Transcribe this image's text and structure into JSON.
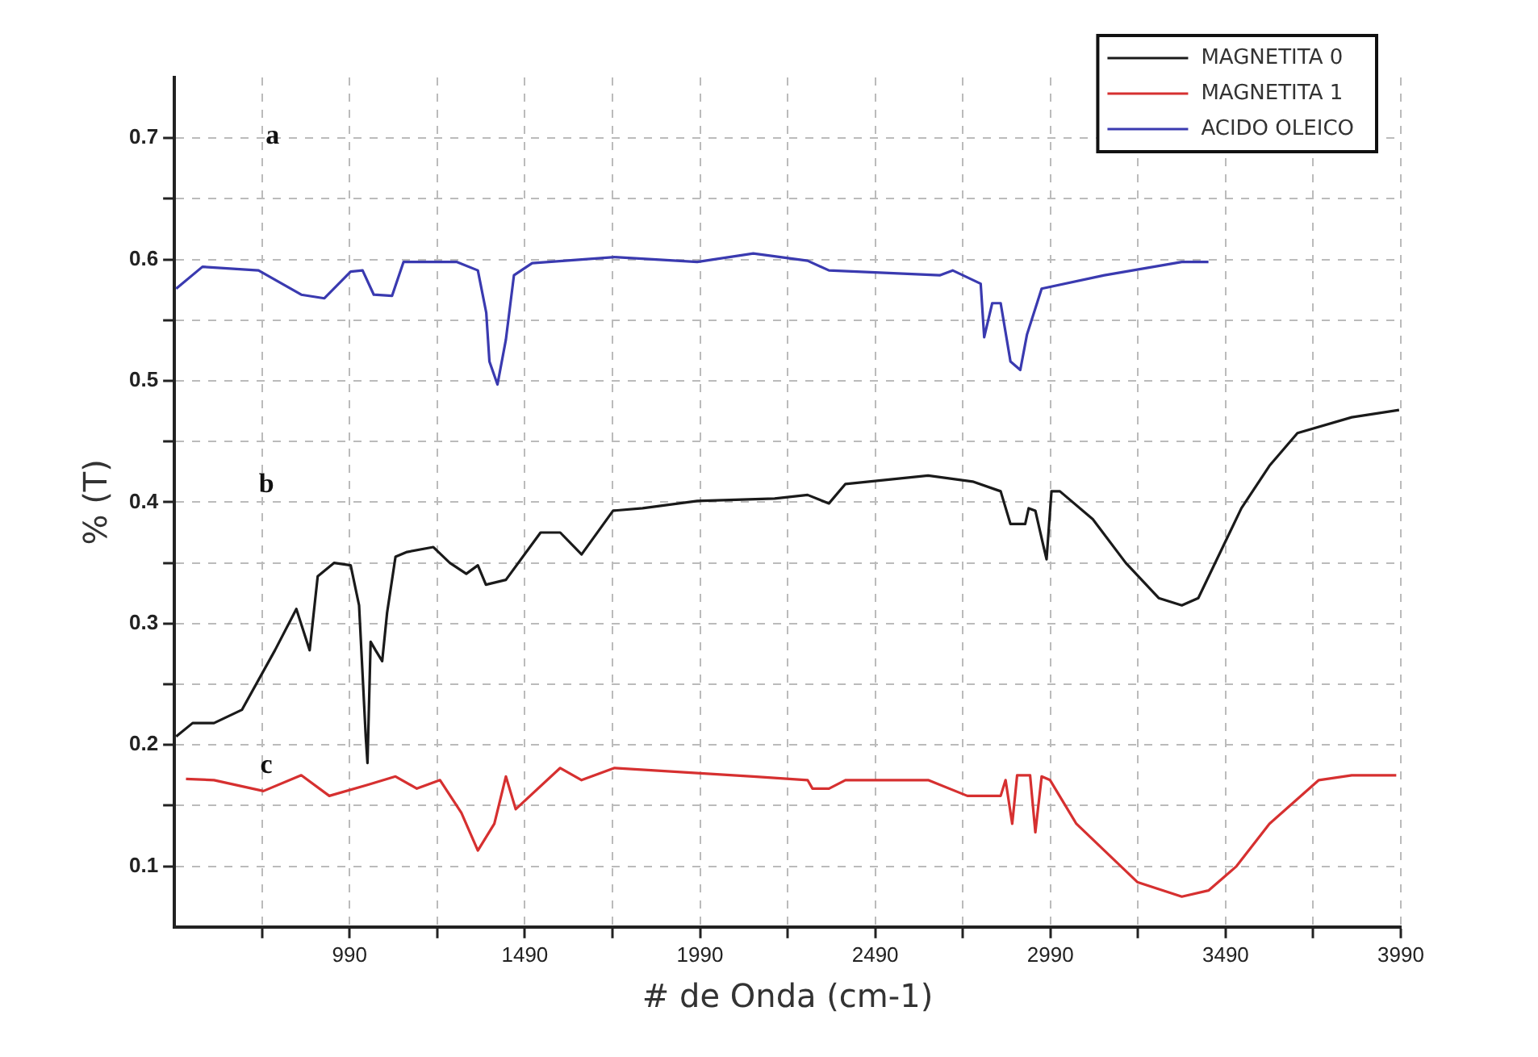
{
  "chart_data": {
    "type": "line",
    "xlabel": "# de Onda (cm-1)",
    "ylabel": "% (T)",
    "xlim": [
      490,
      3990
    ],
    "xticks": [
      {
        "value": 740,
        "label": null
      },
      990,
      {
        "value": 1240,
        "label": null
      },
      1490,
      {
        "value": 1740,
        "label": null
      },
      1990,
      {
        "value": 2240,
        "label": null
      },
      2490,
      {
        "value": 2740,
        "label": null
      },
      2990,
      {
        "value": 3240,
        "label": null
      },
      3490,
      {
        "value": 3740,
        "label": null
      },
      3990
    ],
    "ylim": [
      0.05,
      0.75
    ],
    "yticks": [
      0.1,
      {
        "value": 0.15,
        "label": null
      },
      0.2,
      {
        "value": 0.25,
        "label": null
      },
      0.3,
      {
        "value": 0.35,
        "label": null
      },
      0.4,
      {
        "value": 0.45,
        "label": null
      },
      0.5,
      {
        "value": 0.55,
        "label": null
      },
      0.6,
      {
        "value": 0.65,
        "label": null
      },
      0.7
    ],
    "grid": true,
    "legend": "top right",
    "marker": "none",
    "line_style": "solid",
    "annotations": [
      "a",
      "b",
      "c"
    ],
    "series": [
      {
        "name": "MAGNETITA 0",
        "color": "#1a1a1a",
        "x": [
          495,
          542,
          603,
          683,
          777,
          838,
          876,
          899,
          946,
          993,
          1017,
          1036,
          1041,
          1050,
          1064,
          1083,
          1097,
          1121,
          1154,
          1229,
          1276,
          1323,
          1356,
          1379,
          1436,
          1535,
          1591,
          1652,
          1742,
          1826,
          1982,
          2203,
          2297,
          2358,
          2405,
          2641,
          2768,
          2848,
          2876,
          2918,
          2928,
          2947,
          2970,
          2979,
          2993,
          3017,
          3111,
          3205,
          3299,
          3365,
          3412,
          3535,
          3615,
          3695,
          3850,
          3985
        ],
        "values": [
          0.207,
          0.218,
          0.218,
          0.229,
          0.278,
          0.312,
          0.278,
          0.339,
          0.35,
          0.348,
          0.315,
          0.207,
          0.185,
          0.285,
          0.278,
          0.269,
          0.309,
          0.355,
          0.359,
          0.363,
          0.35,
          0.341,
          0.348,
          0.332,
          0.336,
          0.375,
          0.375,
          0.357,
          0.393,
          0.395,
          0.401,
          0.403,
          0.406,
          0.399,
          0.415,
          0.422,
          0.417,
          0.409,
          0.382,
          0.382,
          0.395,
          0.393,
          0.364,
          0.353,
          0.409,
          0.409,
          0.386,
          0.35,
          0.321,
          0.315,
          0.321,
          0.395,
          0.43,
          0.457,
          0.47,
          0.476
        ]
      },
      {
        "name": "MAGNETITA 1",
        "color": "#d63030",
        "x": [
          523,
          603,
          744,
          852,
          932,
          1041,
          1121,
          1182,
          1248,
          1309,
          1356,
          1403,
          1436,
          1464,
          1591,
          1652,
          1746,
          2142,
          2297,
          2311,
          2358,
          2405,
          2641,
          2753,
          2848,
          2862,
          2881,
          2895,
          2932,
          2947,
          2965,
          2989,
          3064,
          3144,
          3238,
          3365,
          3441,
          3521,
          3615,
          3756,
          3850,
          3977
        ],
        "values": [
          0.172,
          0.171,
          0.162,
          0.175,
          0.158,
          0.167,
          0.174,
          0.164,
          0.171,
          0.144,
          0.113,
          0.135,
          0.174,
          0.147,
          0.181,
          0.171,
          0.181,
          0.174,
          0.171,
          0.164,
          0.164,
          0.171,
          0.171,
          0.158,
          0.158,
          0.171,
          0.135,
          0.175,
          0.175,
          0.128,
          0.174,
          0.171,
          0.135,
          0.113,
          0.087,
          0.075,
          0.08,
          0.1,
          0.135,
          0.171,
          0.175,
          0.175
        ]
      },
      {
        "name": "ACIDO OLEICO",
        "color": "#3a3ab0",
        "x": [
          495,
          570,
          730,
          852,
          918,
          993,
          1027,
          1059,
          1111,
          1144,
          1295,
          1356,
          1380,
          1389,
          1412,
          1436,
          1459,
          1511,
          1746,
          1982,
          2142,
          2297,
          2358,
          2674,
          2711,
          2791,
          2801,
          2824,
          2848,
          2876,
          2904,
          2923,
          2965,
          3144,
          3365,
          3441
        ],
        "values": [
          0.576,
          0.594,
          0.591,
          0.571,
          0.568,
          0.59,
          0.591,
          0.571,
          0.57,
          0.598,
          0.598,
          0.591,
          0.556,
          0.516,
          0.497,
          0.534,
          0.587,
          0.597,
          0.602,
          0.598,
          0.605,
          0.599,
          0.591,
          0.587,
          0.591,
          0.58,
          0.536,
          0.564,
          0.564,
          0.516,
          0.509,
          0.538,
          0.576,
          0.587,
          0.598,
          0.598
        ]
      }
    ]
  }
}
